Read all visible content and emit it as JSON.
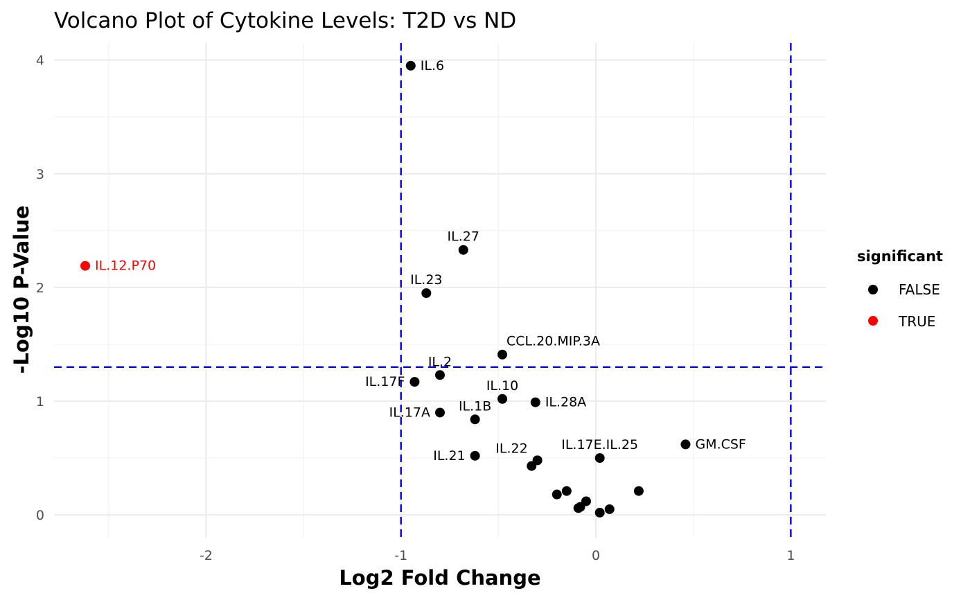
{
  "chart_data": {
    "type": "scatter",
    "title": "Volcano Plot of Cytokine Levels: T2D vs ND",
    "xlabel": "Log2 Fold Change",
    "ylabel": "-Log10 P-Value",
    "xlim": [
      -2.78,
      1.18
    ],
    "ylim": [
      -0.2,
      4.15
    ],
    "x_ticks": [
      -2,
      -1,
      0,
      1
    ],
    "x_tick_labels": [
      "-2",
      "-1",
      "0",
      "1"
    ],
    "y_ticks": [
      0,
      1,
      2,
      3,
      4
    ],
    "y_tick_labels": [
      "0",
      "1",
      "2",
      "3",
      "4"
    ],
    "grid": true,
    "thresholds": {
      "x": [
        -1,
        1
      ],
      "y": 1.3
    },
    "legend": {
      "title": "significant",
      "position": "right",
      "entries": [
        {
          "label": "FALSE",
          "color": "#000000"
        },
        {
          "label": "TRUE",
          "color": "#ff0000"
        }
      ]
    },
    "points": [
      {
        "label": "IL.6",
        "x": -0.95,
        "y": 3.95,
        "significant": false
      },
      {
        "label": "IL.12.P70",
        "x": -2.62,
        "y": 2.19,
        "significant": true
      },
      {
        "label": "IL.27",
        "x": -0.68,
        "y": 2.33,
        "significant": false
      },
      {
        "label": "IL.23",
        "x": -0.87,
        "y": 1.95,
        "significant": false
      },
      {
        "label": "CCL.20.MIP.3A",
        "x": -0.48,
        "y": 1.41,
        "significant": false
      },
      {
        "label": "IL.2",
        "x": -0.8,
        "y": 1.23,
        "significant": false
      },
      {
        "label": "IL.17F",
        "x": -0.93,
        "y": 1.17,
        "significant": false
      },
      {
        "label": "IL.10",
        "x": -0.48,
        "y": 1.02,
        "significant": false
      },
      {
        "label": "IL.28A",
        "x": -0.31,
        "y": 0.99,
        "significant": false
      },
      {
        "label": "IL.17A",
        "x": -0.8,
        "y": 0.9,
        "significant": false
      },
      {
        "label": "IL.1B",
        "x": -0.62,
        "y": 0.84,
        "significant": false
      },
      {
        "label": "GM.CSF",
        "x": 0.46,
        "y": 0.62,
        "significant": false
      },
      {
        "label": "IL.21",
        "x": -0.62,
        "y": 0.52,
        "significant": false
      },
      {
        "label": "IL.22",
        "x": -0.3,
        "y": 0.48,
        "significant": false
      },
      {
        "label": "IL.17E.IL.25",
        "x": 0.02,
        "y": 0.5,
        "significant": false
      },
      {
        "label": "",
        "x": -0.33,
        "y": 0.43,
        "significant": false
      },
      {
        "label": "",
        "x": 0.22,
        "y": 0.21,
        "significant": false
      },
      {
        "label": "",
        "x": -0.15,
        "y": 0.21,
        "significant": false
      },
      {
        "label": "",
        "x": -0.2,
        "y": 0.18,
        "significant": false
      },
      {
        "label": "",
        "x": -0.05,
        "y": 0.12,
        "significant": false
      },
      {
        "label": "",
        "x": -0.08,
        "y": 0.07,
        "significant": false
      },
      {
        "label": "",
        "x": -0.09,
        "y": 0.06,
        "significant": false
      },
      {
        "label": "",
        "x": 0.07,
        "y": 0.05,
        "significant": false
      },
      {
        "label": "",
        "x": 0.02,
        "y": 0.02,
        "significant": false
      }
    ]
  }
}
